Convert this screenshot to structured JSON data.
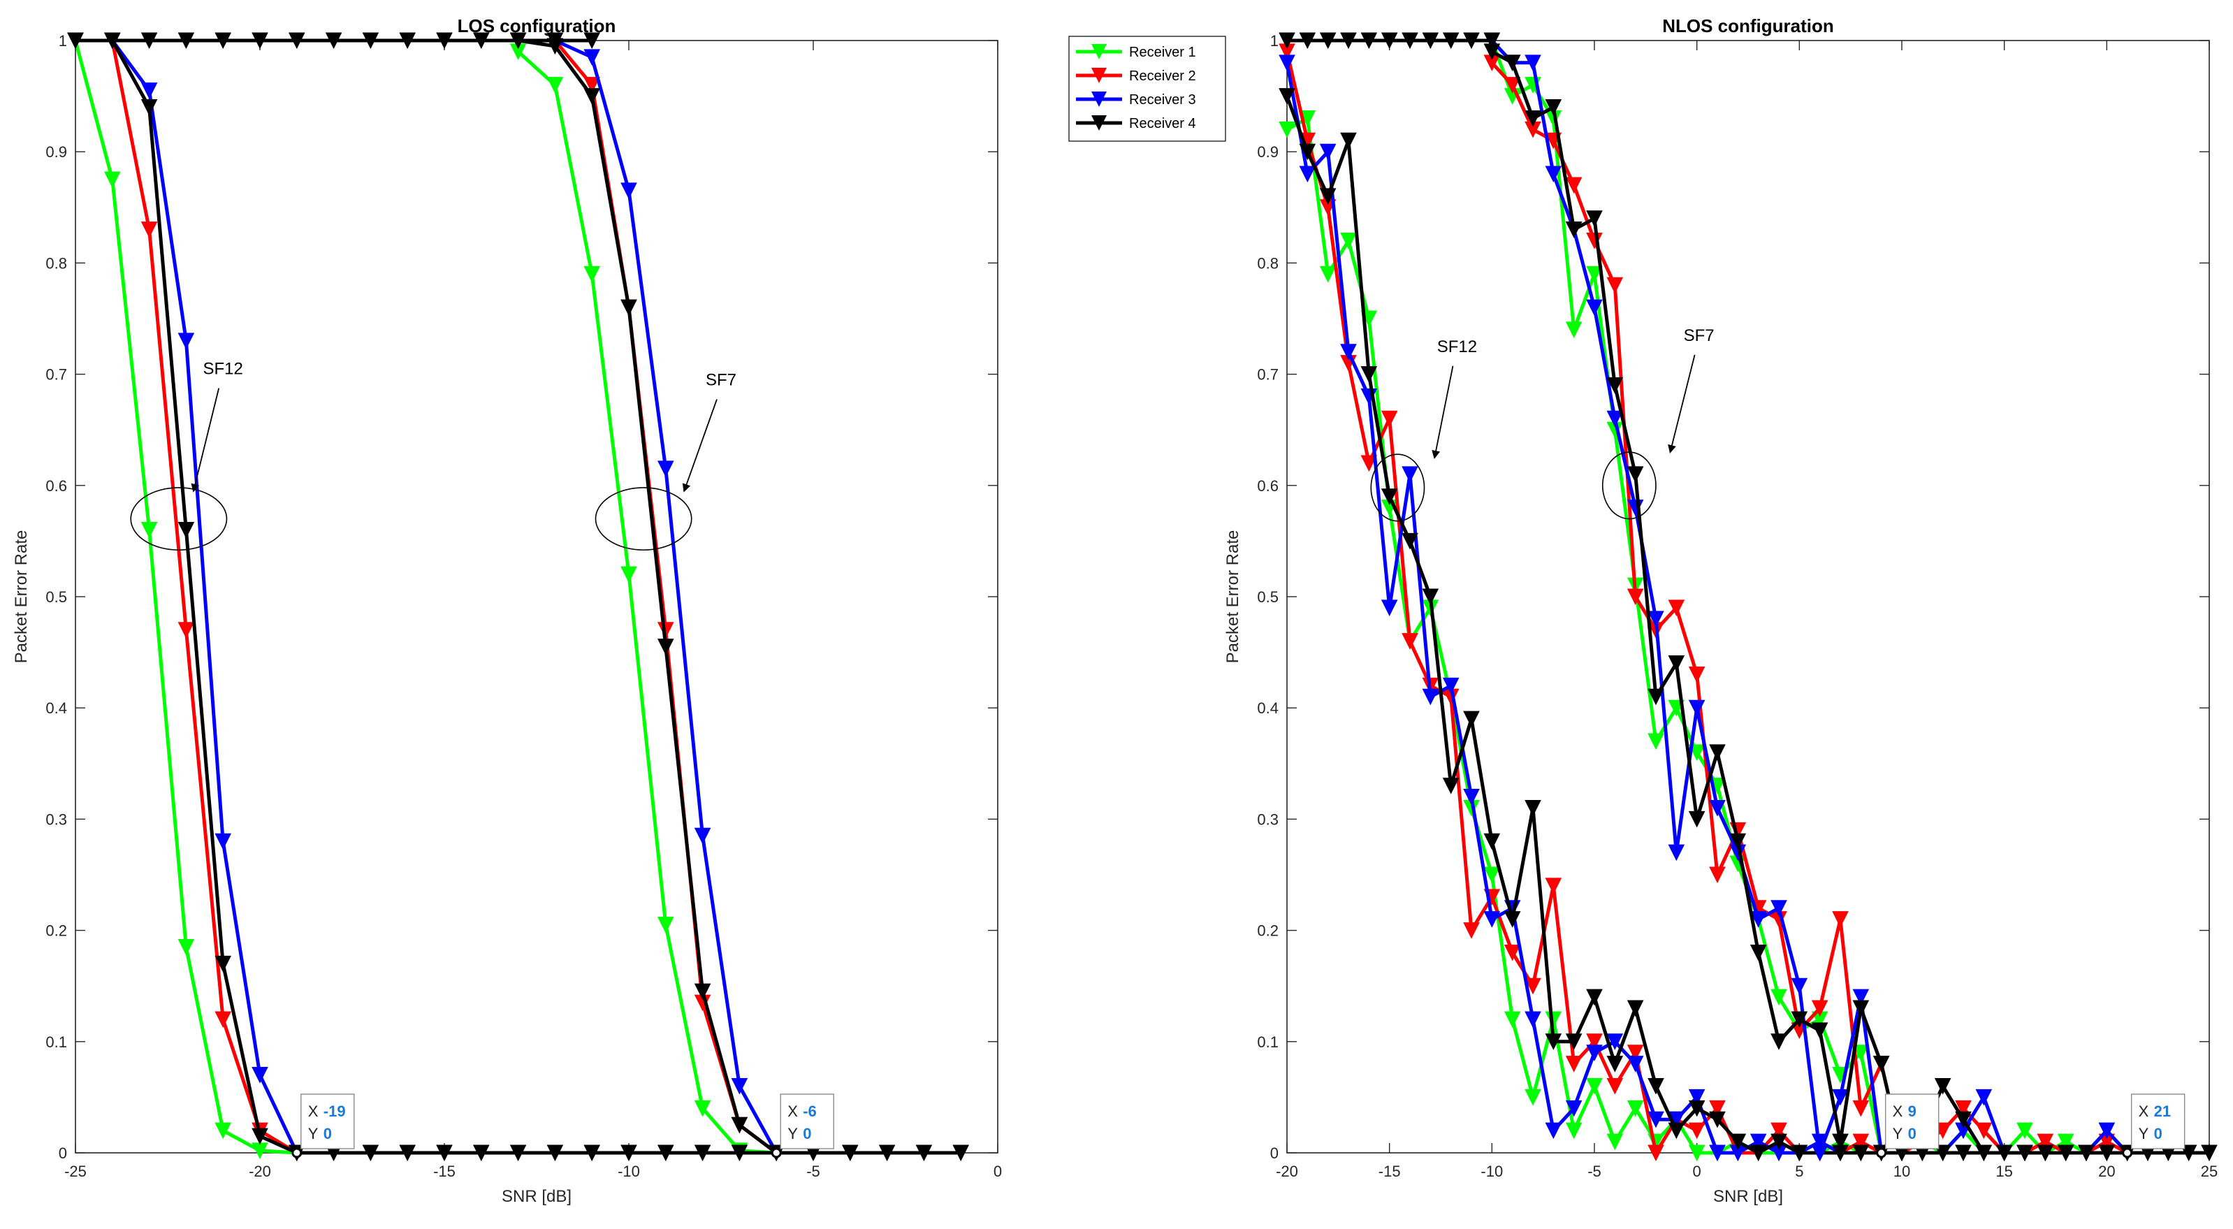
{
  "chart_data": [
    {
      "type": "line",
      "title": "LOS configuration",
      "xlabel": "SNR [dB]",
      "ylabel": "Packet Error Rate",
      "xlim": [
        -25,
        0
      ],
      "ylim": [
        0,
        1
      ],
      "xticks": [
        -25,
        -20,
        -15,
        -10,
        -5,
        0
      ],
      "xtick_labels": [
        "-25",
        "-20",
        "-15",
        "-10",
        "-5",
        "0"
      ],
      "yticks": [
        0,
        0.1,
        0.2,
        0.3,
        0.4,
        0.5,
        0.6,
        0.7,
        0.8,
        0.9,
        1
      ],
      "ytick_labels": [
        "0",
        "0.1",
        "0.2",
        "0.3",
        "0.4",
        "0.5",
        "0.6",
        "0.7",
        "0.8",
        "0.9",
        "1"
      ],
      "grid": false,
      "marker": "triangle-down",
      "series": [
        {
          "name": "Receiver 1 SF12",
          "color": "#00ff00",
          "x": [
            -25,
            -24,
            -23,
            -22,
            -21,
            -20,
            -19
          ],
          "y": [
            1,
            0.875,
            0.56,
            0.185,
            0.02,
            0.002,
            0
          ]
        },
        {
          "name": "Receiver 2 SF12",
          "color": "#ff0000",
          "x": [
            -25,
            -24,
            -23,
            -22,
            -21,
            -20,
            -19
          ],
          "y": [
            1,
            1,
            0.83,
            0.47,
            0.12,
            0.02,
            0
          ]
        },
        {
          "name": "Receiver 3 SF12",
          "color": "#0000ff",
          "x": [
            -25,
            -24,
            -23,
            -22,
            -21,
            -20,
            -19
          ],
          "y": [
            1,
            1,
            0.955,
            0.73,
            0.28,
            0.07,
            0
          ]
        },
        {
          "name": "Receiver 4 SF12",
          "color": "#000000",
          "x": [
            -25,
            -24,
            -23,
            -22,
            -21,
            -20,
            -19
          ],
          "y": [
            1,
            1,
            0.94,
            0.56,
            0.17,
            0.015,
            0
          ]
        },
        {
          "name": "Receiver 1 SF7",
          "color": "#00ff00",
          "x": [
            -13,
            -12,
            -11,
            -10,
            -9,
            -8,
            -7,
            -6
          ],
          "y": [
            0.99,
            0.96,
            0.79,
            0.52,
            0.205,
            0.04,
            0.002,
            0
          ]
        },
        {
          "name": "Receiver 2 SF7",
          "color": "#ff0000",
          "x": [
            -13,
            -12,
            -11,
            -10,
            -9,
            -8,
            -7,
            -6
          ],
          "y": [
            1,
            1,
            0.96,
            0.76,
            0.47,
            0.135,
            0.025,
            0
          ]
        },
        {
          "name": "Receiver 3 SF7",
          "color": "#0000ff",
          "x": [
            -13,
            -12,
            -11,
            -10,
            -9,
            -8,
            -7,
            -6
          ],
          "y": [
            1,
            1,
            0.985,
            0.865,
            0.615,
            0.285,
            0.06,
            0
          ]
        },
        {
          "name": "Receiver 4 SF7",
          "color": "#000000",
          "x": [
            -13,
            -12,
            -11,
            -10,
            -9,
            -8,
            -7,
            -6
          ],
          "y": [
            1,
            0.995,
            0.95,
            0.76,
            0.455,
            0.145,
            0.025,
            0
          ]
        },
        {
          "name": "Saturated (PER = 1)",
          "color": "#000000",
          "x": [
            -25,
            -24,
            -23,
            -22,
            -21,
            -20,
            -19,
            -18,
            -17,
            -16,
            -15,
            -14,
            -13,
            -12,
            -11
          ],
          "y": [
            1,
            1,
            1,
            1,
            1,
            1,
            1,
            1,
            1,
            1,
            1,
            1,
            1,
            1,
            1
          ]
        },
        {
          "name": "Zero region",
          "color": "#000000",
          "x": [
            -19,
            -18,
            -17,
            -16,
            -15,
            -14,
            -13,
            -12,
            -11,
            -10,
            -9,
            -8,
            -7,
            -6,
            -5,
            -4,
            -3,
            -2,
            -1
          ],
          "y": [
            0,
            0,
            0,
            0,
            0,
            0,
            0,
            0,
            0,
            0,
            0,
            0,
            0,
            0,
            0,
            0,
            0,
            0,
            0
          ]
        }
      ],
      "annotations": [
        {
          "text": "SF12",
          "ellipse_center": [
            -22.2,
            0.57
          ],
          "ellipse_radii": [
            1.3,
            0.028
          ],
          "label_at": [
            -21,
            0.7
          ],
          "arrow_to": [
            -21.8,
            0.595
          ]
        },
        {
          "text": "SF7",
          "ellipse_center": [
            -9.6,
            0.57
          ],
          "ellipse_radii": [
            1.3,
            0.028
          ],
          "label_at": [
            -7.5,
            0.69
          ],
          "arrow_to": [
            -8.5,
            0.595
          ]
        }
      ],
      "datatips": [
        {
          "x_label": "X",
          "x_value": "-19",
          "y_label": "Y",
          "y_value": "0",
          "point": [
            -19,
            0
          ]
        },
        {
          "x_label": "X",
          "x_value": "-6",
          "y_label": "Y",
          "y_value": "0",
          "point": [
            -6,
            0
          ]
        }
      ]
    },
    {
      "type": "line",
      "title": "NLOS configuration",
      "xlabel": "SNR [dB]",
      "ylabel": "Packet Error Rate",
      "xlim": [
        -20,
        25
      ],
      "ylim": [
        0,
        1
      ],
      "xticks": [
        -20,
        -15,
        -10,
        -5,
        0,
        5,
        10,
        15,
        20,
        25
      ],
      "xtick_labels": [
        "-20",
        "-15",
        "-10",
        "-5",
        "0",
        "5",
        "10",
        "15",
        "20",
        "25"
      ],
      "yticks": [
        0,
        0.1,
        0.2,
        0.3,
        0.4,
        0.5,
        0.6,
        0.7,
        0.8,
        0.9,
        1
      ],
      "ytick_labels": [
        "0",
        "0.1",
        "0.2",
        "0.3",
        "0.4",
        "0.5",
        "0.6",
        "0.7",
        "0.8",
        "0.9",
        "1"
      ],
      "grid": false,
      "marker": "triangle-down",
      "legend": {
        "placement": "outside-top-left",
        "entries": [
          {
            "label": "Receiver 1",
            "color": "#00ff00"
          },
          {
            "label": "Receiver 2",
            "color": "#ff0000"
          },
          {
            "label": "Receiver 3",
            "color": "#0000ff"
          },
          {
            "label": "Receiver 4",
            "color": "#000000"
          }
        ]
      },
      "series": [
        {
          "name": "Receiver 1 SF12",
          "color": "#00ff00",
          "x": [
            -20,
            -19,
            -18,
            -17,
            -16,
            -15,
            -14,
            -13,
            -12,
            -11,
            -10,
            -9,
            -8,
            -7,
            -6,
            -5,
            -4,
            -3,
            -2,
            -1,
            0,
            1,
            2,
            3,
            4,
            5,
            6,
            7,
            8,
            9
          ],
          "y": [
            0.92,
            0.93,
            0.79,
            0.82,
            0.75,
            0.58,
            0.46,
            0.49,
            0.41,
            0.31,
            0.25,
            0.12,
            0.05,
            0.12,
            0.02,
            0.06,
            0.01,
            0.04,
            0.01,
            0.03,
            0.0,
            0.0,
            0.01,
            0.0,
            0.0,
            0.0,
            0.0,
            0.01,
            0.0,
            0.0
          ]
        },
        {
          "name": "Receiver 2 SF12",
          "color": "#ff0000",
          "x": [
            -20,
            -19,
            -18,
            -17,
            -16,
            -15,
            -14,
            -13,
            -12,
            -11,
            -10,
            -9,
            -8,
            -7,
            -6,
            -5,
            -4,
            -3,
            -2,
            -1,
            0,
            1,
            2,
            3,
            4,
            5,
            6,
            7,
            8,
            9
          ],
          "y": [
            0.99,
            0.91,
            0.85,
            0.71,
            0.62,
            0.66,
            0.46,
            0.42,
            0.41,
            0.2,
            0.23,
            0.18,
            0.15,
            0.24,
            0.08,
            0.1,
            0.06,
            0.09,
            0.0,
            0.03,
            0.02,
            0.04,
            0.0,
            0.0,
            0.02,
            0.0,
            0.0,
            0.0,
            0.01,
            0.0
          ]
        },
        {
          "name": "Receiver 3 SF12",
          "color": "#0000ff",
          "x": [
            -20,
            -19,
            -18,
            -17,
            -16,
            -15,
            -14,
            -13,
            -12,
            -11,
            -10,
            -9,
            -8,
            -7,
            -6,
            -5,
            -4,
            -3,
            -2,
            -1,
            0,
            1,
            2,
            3,
            4,
            5,
            6,
            7,
            8,
            9
          ],
          "y": [
            0.98,
            0.88,
            0.9,
            0.72,
            0.68,
            0.49,
            0.61,
            0.41,
            0.42,
            0.32,
            0.21,
            0.22,
            0.12,
            0.02,
            0.04,
            0.09,
            0.1,
            0.08,
            0.03,
            0.03,
            0.05,
            0.0,
            0.0,
            0.01,
            0.0,
            0.0,
            0.01,
            0.0,
            0.0,
            0.0
          ]
        },
        {
          "name": "Receiver 4 SF12",
          "color": "#000000",
          "x": [
            -20,
            -19,
            -18,
            -17,
            -16,
            -15,
            -14,
            -13,
            -12,
            -11,
            -10,
            -9,
            -8,
            -7,
            -6,
            -5,
            -4,
            -3,
            -2,
            -1,
            0,
            1,
            2,
            3,
            4,
            5,
            6,
            7,
            8,
            9
          ],
          "y": [
            0.95,
            0.9,
            0.86,
            0.91,
            0.7,
            0.59,
            0.55,
            0.5,
            0.33,
            0.39,
            0.28,
            0.21,
            0.31,
            0.1,
            0.1,
            0.14,
            0.08,
            0.13,
            0.06,
            0.02,
            0.04,
            0.03,
            0.01,
            0.0,
            0.01,
            0.0,
            0.0,
            0.0,
            0.0,
            0.0
          ]
        },
        {
          "name": "Receiver 1 SF7",
          "color": "#00ff00",
          "x": [
            -10,
            -9,
            -8,
            -7,
            -6,
            -5,
            -4,
            -3,
            -2,
            -1,
            0,
            1,
            2,
            3,
            4,
            5,
            6,
            7,
            8,
            9,
            10,
            11,
            12,
            13,
            14,
            15,
            16,
            17,
            18,
            19,
            20,
            21
          ],
          "y": [
            1,
            0.95,
            0.96,
            0.93,
            0.74,
            0.79,
            0.65,
            0.51,
            0.37,
            0.4,
            0.36,
            0.33,
            0.26,
            0.21,
            0.14,
            0.11,
            0.12,
            0.07,
            0.09,
            0.0,
            0.03,
            0.01,
            0.0,
            0.02,
            0.0,
            0.0,
            0.02,
            0.0,
            0.01,
            0.0,
            0.02,
            0.0
          ]
        },
        {
          "name": "Receiver 2 SF7",
          "color": "#ff0000",
          "x": [
            -10,
            -9,
            -8,
            -7,
            -6,
            -5,
            -4,
            -3,
            -2,
            -1,
            0,
            1,
            2,
            3,
            4,
            5,
            6,
            7,
            8,
            9,
            10,
            11,
            12,
            13,
            14,
            15,
            16,
            17,
            18,
            19,
            20,
            21
          ],
          "y": [
            0.98,
            0.96,
            0.92,
            0.91,
            0.87,
            0.82,
            0.78,
            0.5,
            0.47,
            0.49,
            0.43,
            0.25,
            0.29,
            0.22,
            0.21,
            0.11,
            0.13,
            0.21,
            0.04,
            0.08,
            0.0,
            0.01,
            0.02,
            0.04,
            0.02,
            0.0,
            0.0,
            0.01,
            0.0,
            0.0,
            0.01,
            0.0
          ]
        },
        {
          "name": "Receiver 3 SF7",
          "color": "#0000ff",
          "x": [
            -10,
            -9,
            -8,
            -7,
            -6,
            -5,
            -4,
            -3,
            -2,
            -1,
            0,
            1,
            2,
            3,
            4,
            5,
            6,
            7,
            8,
            9,
            10,
            11,
            12,
            13,
            14,
            15,
            16,
            17,
            18,
            19,
            20,
            21
          ],
          "y": [
            1,
            0.98,
            0.98,
            0.88,
            0.83,
            0.76,
            0.66,
            0.58,
            0.48,
            0.27,
            0.4,
            0.31,
            0.27,
            0.21,
            0.22,
            0.15,
            0.0,
            0.05,
            0.14,
            0.0,
            0.0,
            0.0,
            0.0,
            0.02,
            0.05,
            0.0,
            0.0,
            0.0,
            0.0,
            0.0,
            0.02,
            0.0
          ]
        },
        {
          "name": "Receiver 4 SF7",
          "color": "#000000",
          "x": [
            -10,
            -9,
            -8,
            -7,
            -6,
            -5,
            -4,
            -3,
            -2,
            -1,
            0,
            1,
            2,
            3,
            4,
            5,
            6,
            7,
            8,
            9,
            10,
            11,
            12,
            13,
            14,
            15,
            16,
            17,
            18,
            19,
            20,
            21
          ],
          "y": [
            0.99,
            0.98,
            0.93,
            0.94,
            0.83,
            0.84,
            0.69,
            0.61,
            0.41,
            0.44,
            0.3,
            0.36,
            0.28,
            0.18,
            0.1,
            0.12,
            0.11,
            0.01,
            0.13,
            0.08,
            0.0,
            0.02,
            0.06,
            0.03,
            0.0,
            0.0,
            0.0,
            0.0,
            0.0,
            0.0,
            0.0,
            0.0
          ]
        },
        {
          "name": "Saturated (PER = 1)",
          "color": "#000000",
          "x": [
            -20,
            -19,
            -18,
            -17,
            -16,
            -15,
            -14,
            -13,
            -12,
            -11,
            -10
          ],
          "y": [
            1,
            1,
            1,
            1,
            1,
            1,
            1,
            1,
            1,
            1,
            1
          ]
        },
        {
          "name": "Zero region",
          "color": "#000000",
          "x": [
            9,
            10,
            11,
            12,
            13,
            14,
            15,
            16,
            17,
            18,
            19,
            20,
            21,
            22,
            23,
            24,
            25
          ],
          "y": [
            0,
            0,
            0,
            0,
            0,
            0,
            0,
            0,
            0,
            0,
            0,
            0,
            0,
            0,
            0,
            0,
            0
          ]
        }
      ],
      "annotations": [
        {
          "text": "SF12",
          "ellipse_center": [
            -14.6,
            0.598
          ],
          "ellipse_radii": [
            1.3,
            0.03
          ],
          "label_at": [
            -11.7,
            0.72
          ],
          "arrow_to": [
            -12.8,
            0.625
          ]
        },
        {
          "text": "SF7",
          "ellipse_center": [
            -3.3,
            0.6
          ],
          "ellipse_radii": [
            1.3,
            0.03
          ],
          "label_at": [
            0.1,
            0.73
          ],
          "arrow_to": [
            -1.3,
            0.63
          ]
        }
      ],
      "datatips": [
        {
          "x_label": "X",
          "x_value": "9",
          "y_label": "Y",
          "y_value": "0",
          "point": [
            9,
            0
          ]
        },
        {
          "x_label": "X",
          "x_value": "21",
          "y_label": "Y",
          "y_value": "0",
          "point": [
            21,
            0
          ]
        }
      ]
    }
  ]
}
